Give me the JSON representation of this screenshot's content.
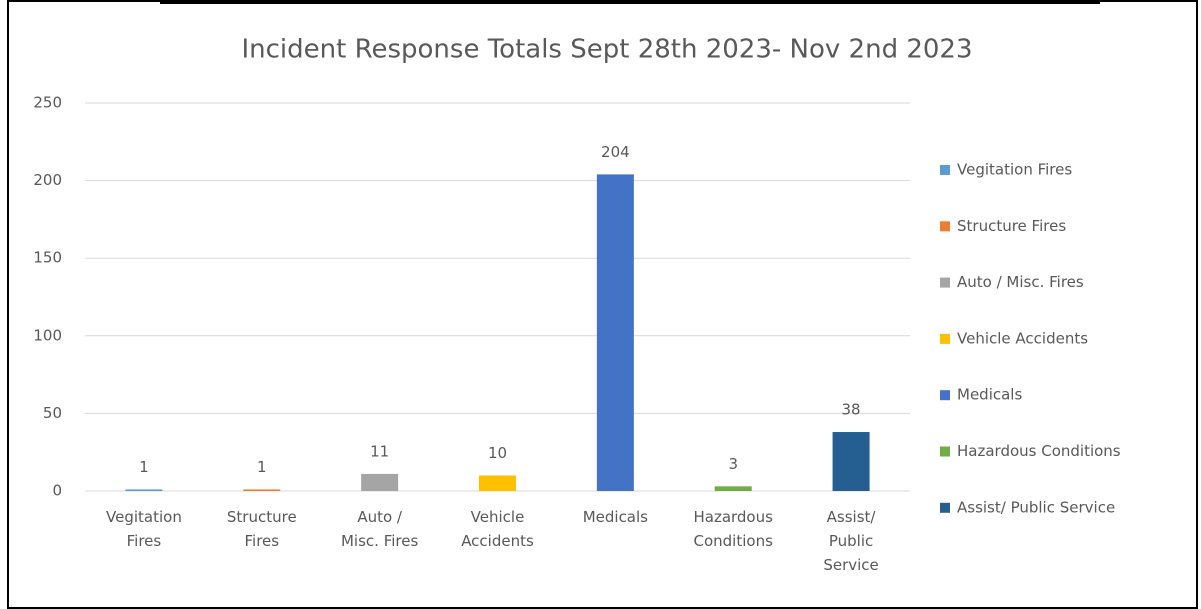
{
  "chart_data": {
    "type": "bar",
    "title": "Incident Response Totals Sept 28th 2023- Nov 2nd 2023",
    "categories": [
      "Vegitation Fires",
      "Structure Fires",
      "Auto / Misc. Fires",
      "Vehicle Accidents",
      "Medicals",
      "Hazardous Conditions",
      "Assist/ Public Service"
    ],
    "series": [
      {
        "name": "Vegitation Fires",
        "color": "#5b9bd5",
        "values": [
          1,
          null,
          null,
          null,
          null,
          null,
          null
        ]
      },
      {
        "name": "Structure Fires",
        "color": "#ed7d31",
        "values": [
          null,
          1,
          null,
          null,
          null,
          null,
          null
        ]
      },
      {
        "name": "Auto / Misc.  Fires",
        "color": "#a5a5a5",
        "values": [
          null,
          null,
          11,
          null,
          null,
          null,
          null
        ]
      },
      {
        "name": "Vehicle Accidents",
        "color": "#ffc000",
        "values": [
          null,
          null,
          null,
          10,
          null,
          null,
          null
        ]
      },
      {
        "name": "Medicals",
        "color": "#4472c4",
        "values": [
          null,
          null,
          null,
          null,
          204,
          null,
          null
        ]
      },
      {
        "name": "Hazardous Conditions",
        "color": "#70ad47",
        "values": [
          null,
          null,
          null,
          null,
          null,
          3,
          null
        ]
      },
      {
        "name": "Assist/ Public Service",
        "color": "#255e91",
        "values": [
          null,
          null,
          null,
          null,
          null,
          null,
          38
        ]
      }
    ],
    "ylim": [
      0,
      250
    ],
    "yticks": [
      0,
      50,
      100,
      150,
      200,
      250
    ],
    "grid": true,
    "legend": "right"
  }
}
